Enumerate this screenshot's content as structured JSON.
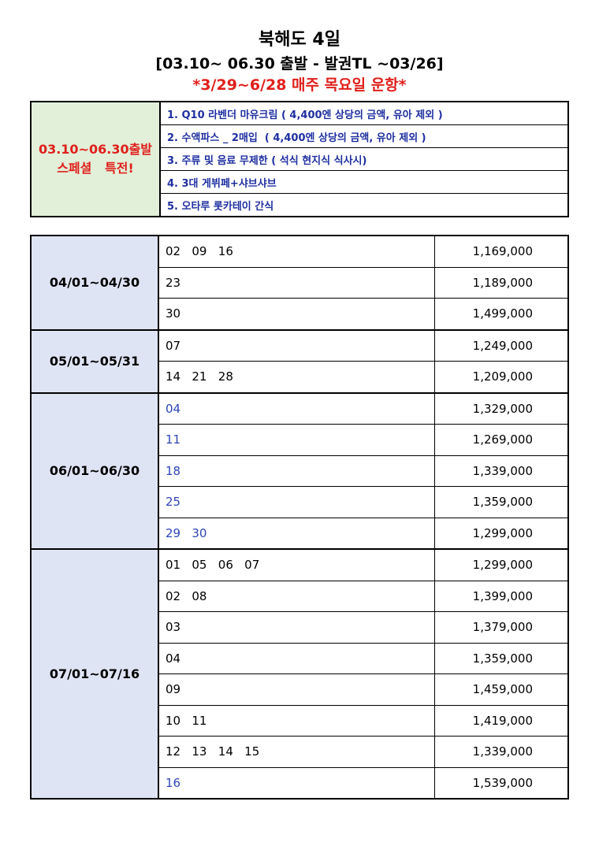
{
  "header": {
    "title": "북해도 4일",
    "subtitle": "[03.10~ 06.30 출발 - 발권TL ~03/26]",
    "notice": "*3/29~6/28 매주 목요일 운항*"
  },
  "special": {
    "label": [
      "03.10~06.30출발",
      "스페셜   특전!"
    ],
    "items": [
      "1. Q10 라벤더 마유크림 ( 4,400엔 상당의 금액, 유아 제외 )",
      "2. 수액파스 _ 2매입  ( 4,400엔 상당의 금액, 유아 제외 )",
      "3. 주류 및 음료 무제한 ( 석식 현지식 식사시)",
      "4. 3대 게뷔페+샤브샤브",
      "5. 오타루 롯카테이 간식"
    ]
  },
  "schedule": {
    "groups": [
      {
        "period": "04/01~04/30",
        "rows": [
          {
            "dates": "02   09   16",
            "price": "1,169,000"
          },
          {
            "dates": "23",
            "price": "1,189,000"
          },
          {
            "dates": "30",
            "price": "1,499,000"
          }
        ]
      },
      {
        "period": "05/01~05/31",
        "rows": [
          {
            "dates": "07",
            "price": "1,249,000"
          },
          {
            "dates": "14   21   28",
            "price": "1,209,000"
          }
        ]
      },
      {
        "period": "06/01~06/30",
        "rows": [
          {
            "dates": "04",
            "price": "1,329,000",
            "color": "#2e45b8"
          },
          {
            "dates": "11",
            "price": "1,269,000",
            "color": "#2e45b8"
          },
          {
            "dates": "18",
            "price": "1,339,000",
            "color": "#2e45b8"
          },
          {
            "dates": "25",
            "price": "1,359,000",
            "color": "#2e45b8"
          },
          {
            "dates": "29   30",
            "price": "1,299,000",
            "color": "#2e45b8"
          }
        ]
      },
      {
        "period": "07/01~07/16",
        "rows": [
          {
            "dates": "01   05   06   07",
            "price": "1,299,000"
          },
          {
            "dates": "02   08",
            "price": "1,399,000"
          },
          {
            "dates": "03",
            "price": "1,379,000"
          },
          {
            "dates": "04",
            "price": "1,359,000"
          },
          {
            "dates": "09",
            "price": "1,459,000"
          },
          {
            "dates": "10   11",
            "price": "1,419,000"
          },
          {
            "dates": "12   13   14   15",
            "price": "1,339,000"
          },
          {
            "dates": "16",
            "price": "1,539,000",
            "color": "#2e45b8"
          }
        ]
      }
    ]
  }
}
